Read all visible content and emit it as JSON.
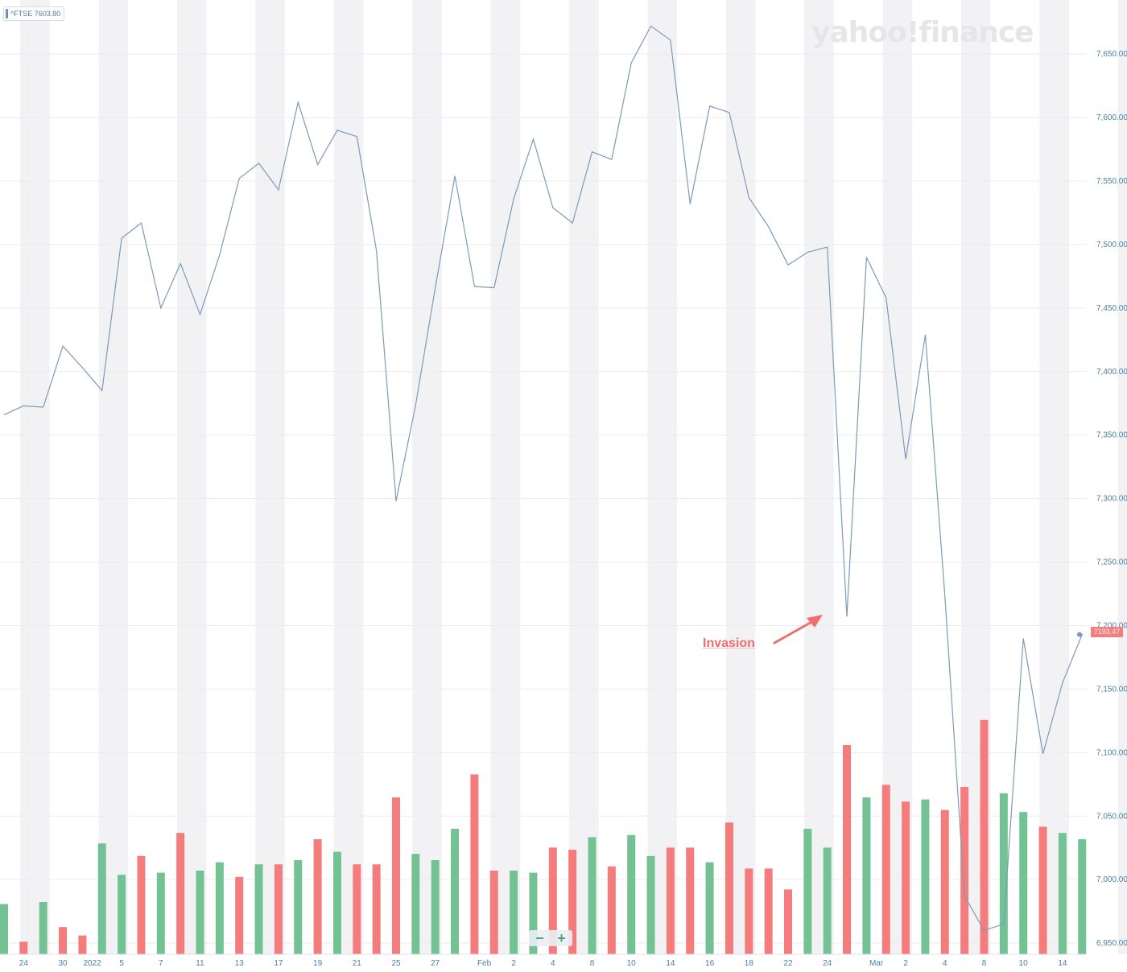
{
  "symbol_chip": {
    "text": "^FTSE 7603.80"
  },
  "brand": {
    "text": "yahoo!finance"
  },
  "annotation": {
    "text": "Invasion"
  },
  "last_price_label": {
    "text": "7193.47"
  },
  "zoom": {
    "minus": "−",
    "plus": "+"
  },
  "colors": {
    "price_line": "#7d9ab8",
    "up_volume": "#73c293",
    "down_volume": "#f47c7c",
    "band": "#f2f2f5",
    "axis_text": "#4a7fa6",
    "annotation": "#f26d6d"
  },
  "chart_data": {
    "type": "line",
    "title": "",
    "xlabel": "",
    "ylabel": "",
    "ylim": [
      6945,
      7690
    ],
    "y_ticks": [
      6950,
      7000,
      7050,
      7100,
      7150,
      7200,
      7250,
      7300,
      7350,
      7400,
      7450,
      7500,
      7550,
      7600,
      7650
    ],
    "y_tick_labels": [
      "6,950.00",
      "7,000.00",
      "7,050.00",
      "7,100.00",
      "7,150.00",
      "7,200.00",
      "7,250.00",
      "7,300.00",
      "7,350.00",
      "7,400.00",
      "7,450.00",
      "7,500.00",
      "7,550.00",
      "7,600.00",
      "7,650.00"
    ],
    "grid": true,
    "x_tick_labels": [
      "24",
      "30",
      "2022",
      "5",
      "7",
      "11",
      "13",
      "17",
      "19",
      "21",
      "25",
      "27",
      "Feb",
      "2",
      "4",
      "8",
      "10",
      "14",
      "16",
      "18",
      "22",
      "24",
      "Mar",
      "2",
      "4",
      "8",
      "10",
      "14"
    ],
    "x_tick_sessions": [
      1,
      3,
      4.5,
      6,
      8,
      10,
      12,
      14,
      16,
      18,
      20,
      22,
      24.5,
      26,
      28,
      30,
      32,
      34,
      36,
      38,
      40,
      42,
      44.5,
      46,
      48,
      50,
      52,
      54
    ],
    "series": [
      {
        "values": [
          7366,
          7373,
          7372,
          7420,
          7403,
          7385,
          7505,
          7517,
          7450,
          7485,
          7445,
          7492,
          7552,
          7564,
          7543,
          7612,
          7563,
          7590,
          7585,
          7495,
          7298,
          7374,
          7466,
          7554,
          7467,
          7466,
          7536,
          7583,
          7529,
          7517,
          7573,
          7567,
          7643,
          7672,
          7661,
          7532,
          7609,
          7604,
          7537,
          7514,
          7484,
          7494,
          7498,
          7207,
          7490,
          7458,
          7331,
          7429,
          7223,
          6987,
          6960,
          6965,
          7190,
          7099,
          7155,
          7193,
          7193
        ]
      }
    ],
    "volume": {
      "relative_heights": [
        0.24,
        0.06,
        0.25,
        0.13,
        0.09,
        0.53,
        0.38,
        0.47,
        0.39,
        0.58,
        0.4,
        0.44,
        0.37,
        0.43,
        0.43,
        0.45,
        0.55,
        0.49,
        0.43,
        0.43,
        0.75,
        0.48,
        0.45,
        0.6,
        0.86,
        0.4,
        0.4,
        0.39,
        0.51,
        0.5,
        0.56,
        0.42,
        0.57,
        0.47,
        0.51,
        0.51,
        0.44,
        0.63,
        0.41,
        0.41,
        0.31,
        0.6,
        0.51,
        1.0,
        0.75,
        0.81,
        0.73,
        0.74,
        0.69,
        0.8,
        1.12,
        0.77,
        0.68,
        0.61,
        0.58,
        0.55
      ],
      "direction": [
        "up",
        "down",
        "up",
        "down",
        "down",
        "up",
        "up",
        "down",
        "up",
        "down",
        "up",
        "up",
        "down",
        "up",
        "down",
        "up",
        "down",
        "up",
        "down",
        "down",
        "down",
        "up",
        "up",
        "up",
        "down",
        "down",
        "up",
        "up",
        "down",
        "down",
        "up",
        "down",
        "up",
        "up",
        "down",
        "down",
        "up",
        "down",
        "down",
        "down",
        "down",
        "up",
        "up",
        "down",
        "up",
        "down",
        "down",
        "up",
        "down",
        "down",
        "down",
        "up",
        "up",
        "down",
        "up",
        "up"
      ]
    }
  }
}
